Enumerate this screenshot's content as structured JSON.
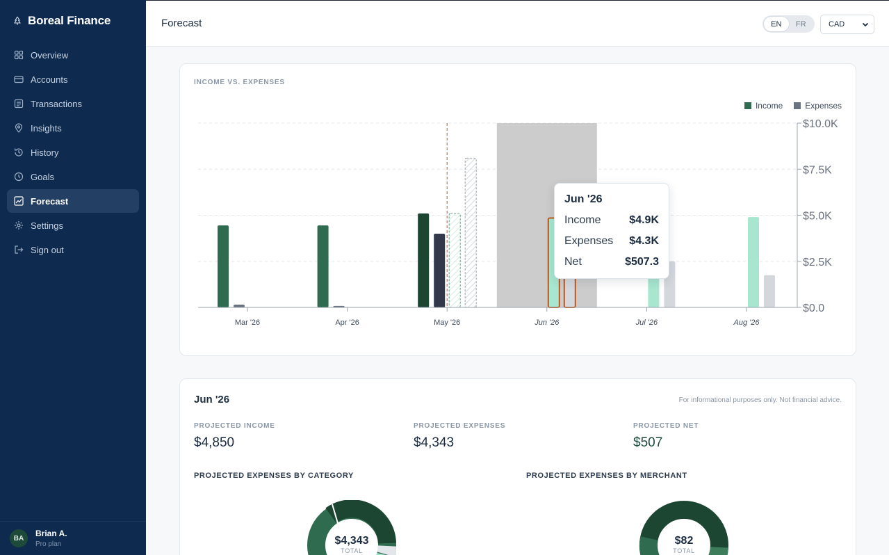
{
  "app": {
    "name": "Boreal Finance"
  },
  "sidebar": {
    "items": [
      {
        "label": "Overview",
        "icon": "grid-icon"
      },
      {
        "label": "Accounts",
        "icon": "card-icon"
      },
      {
        "label": "Transactions",
        "icon": "list-icon"
      },
      {
        "label": "Insights",
        "icon": "pin-icon"
      },
      {
        "label": "History",
        "icon": "clock-rewind-icon"
      },
      {
        "label": "Goals",
        "icon": "clock-icon"
      },
      {
        "label": "Forecast",
        "icon": "trend-chart-icon",
        "active": true
      },
      {
        "label": "Settings",
        "icon": "gear-icon"
      },
      {
        "label": "Sign out",
        "icon": "sign-out-icon"
      }
    ],
    "user": {
      "initials": "BA",
      "name": "Brian A.",
      "plan": "Pro plan"
    }
  },
  "header": {
    "title": "Forecast",
    "languages": [
      "EN",
      "FR"
    ],
    "selected_language": "EN",
    "currency": "CAD"
  },
  "chart_card": {
    "label": "INCOME VS. EXPENSES",
    "legend": [
      {
        "name": "Income",
        "color": "#2f6b4f"
      },
      {
        "name": "Expenses",
        "color": "#6b7280"
      }
    ]
  },
  "chart_data": {
    "type": "bar",
    "categories": [
      "Mar '26",
      "Apr '26",
      "May '26",
      "Jun '26",
      "Jul '26",
      "Aug '26"
    ],
    "forecast_categories": [
      "Jun '26",
      "Jul '26",
      "Aug '26"
    ],
    "series": [
      {
        "name": "Income",
        "values": [
          4450,
          4450,
          5100,
          4850,
          4900,
          4900
        ]
      },
      {
        "name": "Expenses",
        "values": [
          150,
          80,
          4000,
          4343,
          2500,
          1750
        ]
      }
    ],
    "projected_may": {
      "income": 5100,
      "expenses": 8100
    },
    "ylim": [
      0,
      10000
    ],
    "y_ticks": [
      "$0.0",
      "$2.5K",
      "$5.0K",
      "$7.5K",
      "$10.0K"
    ],
    "y_tick_values": [
      0,
      2500,
      5000,
      7500,
      10000
    ],
    "highlighted_category": "Jun '26",
    "grid": true,
    "legend_position": "top-right",
    "colors": {
      "income_actual": "#2f6b4f",
      "income_actual_dark": "#1c4532",
      "expenses_actual": "#6b7280",
      "expenses_actual_dark": "#33384a",
      "income_forecast": "#a8e6cf",
      "expenses_forecast": "#d4d8dd",
      "highlight_band": "#cccccc",
      "highlight_outline": "#c2571a"
    }
  },
  "tooltip": {
    "title": "Jun '26",
    "rows": [
      {
        "label": "Income",
        "value": "$4.9K"
      },
      {
        "label": "Expenses",
        "value": "$4.3K"
      },
      {
        "label": "Net",
        "value": "$507.3"
      }
    ]
  },
  "summary": {
    "title": "Jun '26",
    "disclaimer": "For informational purposes only. Not financial advice.",
    "stats": [
      {
        "label": "PROJECTED INCOME",
        "value": "$4,850"
      },
      {
        "label": "PROJECTED EXPENSES",
        "value": "$4,343"
      },
      {
        "label": "PROJECTED NET",
        "value": "$507"
      }
    ],
    "by_category": {
      "label": "PROJECTED EXPENSES BY CATEGORY",
      "total": "$4,343",
      "total_label": "TOTAL"
    },
    "by_merchant": {
      "label": "PROJECTED EXPENSES BY MERCHANT",
      "total": "$82",
      "total_label": "TOTAL"
    }
  }
}
